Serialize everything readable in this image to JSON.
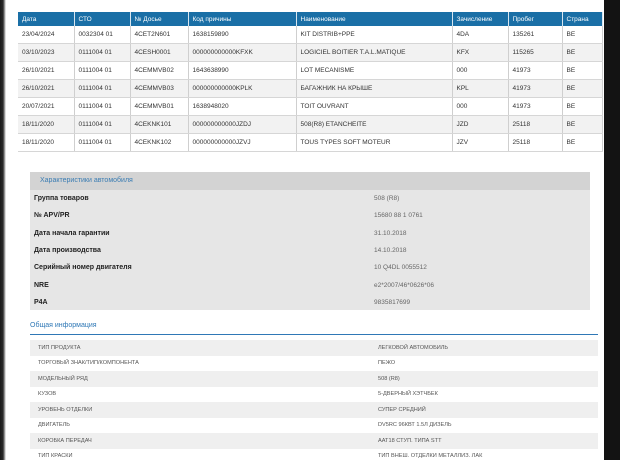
{
  "history": {
    "columns": [
      "Дата",
      "СТО",
      "№ Досье",
      "Код причины",
      "Наименование",
      "Зачисление",
      "Пробег",
      "Страна"
    ],
    "rows": [
      [
        "23/04/2024",
        "0032304 01",
        "4CET2N601",
        "1638159890",
        "KIT DISTRIB+PPE",
        "4DA",
        "135261",
        "BE"
      ],
      [
        "03/10/2023",
        "0111004 01",
        "4CESH0001",
        "000000000000KFXK",
        "LOGICIEL BOITIER T.A.L.MATIQUE",
        "KFX",
        "115265",
        "BE"
      ],
      [
        "26/10/2021",
        "0111004 01",
        "4CEMMVB02",
        "1643638990",
        "LOT MECANISME",
        "000",
        "41973",
        "BE"
      ],
      [
        "26/10/2021",
        "0111004 01",
        "4CEMMVB03",
        "000000000000KPLK",
        "БАГАЖНИК НА КРЫШЕ",
        "KPL",
        "41973",
        "BE"
      ],
      [
        "20/07/2021",
        "0111004 01",
        "4CEMMVB01",
        "1638948020",
        "TOIT OUVRANT",
        "000",
        "41973",
        "BE"
      ],
      [
        "18/11/2020",
        "0111004 01",
        "4CEKNK101",
        "000000000000JZDJ",
        "508(R8) ETANCHEITE",
        "JZD",
        "25118",
        "BE"
      ],
      [
        "18/11/2020",
        "0111004 01",
        "4CEKNK102",
        "000000000000JZVJ",
        "TOUS TYPES SOFT MOTEUR",
        "JZV",
        "25118",
        "BE"
      ]
    ]
  },
  "car": {
    "title": "Характеристики автомобиля",
    "items": [
      {
        "label": "Группа товаров",
        "value": "508 (R8)"
      },
      {
        "label": "№ APV/PR",
        "value": "15680 88 1 0761"
      },
      {
        "label": "Дата начала гарантии",
        "value": "31.10.2018"
      },
      {
        "label": "Дата производства",
        "value": "14.10.2018"
      },
      {
        "label": "Серийный номер двигателя",
        "value": "10 Q4DL 0055512"
      },
      {
        "label": "NRE",
        "value": "e2*2007/46*0626*06"
      },
      {
        "label": "P4A",
        "value": "9835817699"
      }
    ]
  },
  "general": {
    "title": "Общая информация",
    "items": [
      {
        "label": "ТИП ПРОДУКТА",
        "value": "ЛЕГКОВОЙ АВТОМОБИЛЬ"
      },
      {
        "label": "ТОРГОВЫЙ ЗНАК/ТИП/КОМПОНЕНТА",
        "value": "ПЕЖО"
      },
      {
        "label": "МОДЕЛЬНЫЙ РЯД",
        "value": "508 (R8)"
      },
      {
        "label": "КУЗОВ",
        "value": "5-ДВЕРНЫЙ ХЭТЧБЕК"
      },
      {
        "label": "УРОВЕНЬ ОТДЕЛКИ",
        "value": "СУПЕР СРЕДНИЙ"
      },
      {
        "label": "ДВИГАТЕЛЬ",
        "value": "DV5RC 96КВТ 1.5Л ДИЗЕЛЬ"
      },
      {
        "label": "КОРОБКА ПЕРЕДАЧ",
        "value": "AAT18 СТУП. ТИПА STT"
      },
      {
        "label": "ТИП КРАСКИ",
        "value": "ТИП ВНЕШ. ОТДЕЛКИ МЕТАЛЛИЗ. ЛАК"
      }
    ]
  }
}
